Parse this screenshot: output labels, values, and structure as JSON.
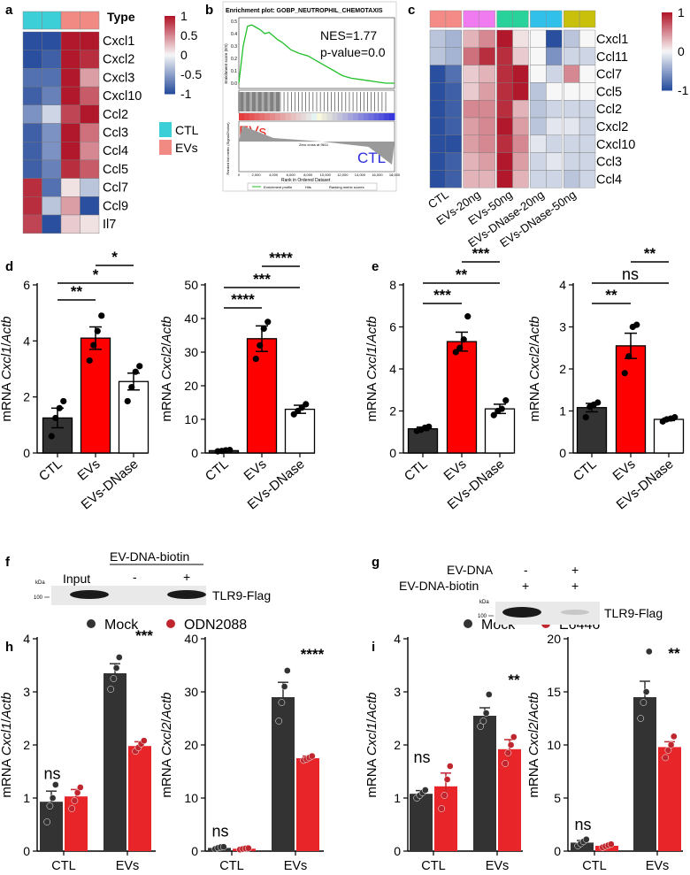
{
  "panels": {
    "a": {
      "label": "a"
    },
    "b": {
      "label": "b"
    },
    "c": {
      "label": "c"
    },
    "d": {
      "label": "d"
    },
    "e": {
      "label": "e"
    },
    "f": {
      "label": "f"
    },
    "g": {
      "label": "g"
    },
    "h": {
      "label": "h"
    },
    "i": {
      "label": "i"
    }
  },
  "colors": {
    "dark": "#333333",
    "red": "#ff0000",
    "dark_red": "#c0262d",
    "heat_high": "#b2182b",
    "heat_low": "#2a4f9e",
    "ctl_cyan": "#3ccfd8",
    "evs_salmon": "#f08a82"
  },
  "chart_data": [
    {
      "panel": "a",
      "type": "heatmap",
      "header": "Type",
      "columns": [
        "CTL",
        "CTL",
        "EVs",
        "EVs"
      ],
      "rows": [
        "Cxcl1",
        "Cxcl2",
        "Cxcl3",
        "Cxcl10",
        "Ccl2",
        "Ccl3",
        "Ccl4",
        "Ccl5",
        "Ccl7",
        "Ccl9",
        "Il7"
      ],
      "values": [
        [
          -1.0,
          -1.0,
          1.0,
          1.0
        ],
        [
          -1.0,
          -0.9,
          1.0,
          0.9
        ],
        [
          -0.8,
          -0.8,
          1.0,
          0.4
        ],
        [
          -0.9,
          -0.7,
          1.0,
          0.7
        ],
        [
          -0.6,
          -0.2,
          0.8,
          1.0
        ],
        [
          -0.9,
          -0.6,
          1.0,
          0.6
        ],
        [
          -0.9,
          -0.6,
          1.0,
          0.5
        ],
        [
          -0.9,
          -0.7,
          0.9,
          0.7
        ],
        [
          0.9,
          -0.8,
          0.1,
          -0.3
        ],
        [
          0.9,
          -0.3,
          0.4,
          -1.0
        ],
        [
          0.8,
          -1.0,
          0.2,
          0.1
        ]
      ],
      "colorbar_ticks": [
        "1",
        "0.5",
        "0",
        "-0.5",
        "-1"
      ],
      "legend": [
        "CTL",
        "EVs"
      ]
    },
    {
      "panel": "b",
      "type": "line",
      "title": "Enrichment plot: GOBP_NEUTROPHIL_CHEMOTAXIS",
      "ylabel_top": "Enrichment score (ES)",
      "ylabel_bottom": "Ranked list metric (Signal2Noise)",
      "xlabel": "Rank in Ordered Dataset",
      "y_ticks": [
        "0.5",
        "0.4",
        "0.3",
        "0.2",
        "0.1",
        "0.0"
      ],
      "x_ticks": [
        "0",
        "2,000",
        "4,000",
        "6,000",
        "8,000",
        "10,000",
        "12,000",
        "14,000",
        "16,000",
        "18,000"
      ],
      "nes": "NES=1.77",
      "pvalue": "p-value=0.0",
      "left_tag": "EVs",
      "right_tag": "CTL",
      "zero_cross": "Zero cross at 9611",
      "legend": [
        "Enrichment profile",
        "Hits",
        "Ranking metric scores"
      ],
      "x": [
        0,
        500,
        1000,
        1500,
        2000,
        2500,
        3000,
        3500,
        4000,
        4500,
        5000,
        5500,
        6000,
        7000,
        8000,
        9000,
        10000,
        11000,
        12000,
        13000,
        14000,
        15000,
        16000,
        17000,
        18000
      ],
      "y": [
        0.0,
        0.3,
        0.46,
        0.47,
        0.45,
        0.43,
        0.4,
        0.41,
        0.38,
        0.35,
        0.33,
        0.3,
        0.27,
        0.24,
        0.22,
        0.18,
        0.14,
        0.1,
        0.06,
        0.04,
        0.03,
        0.02,
        0.01,
        0.0,
        0.0
      ]
    },
    {
      "panel": "c",
      "type": "heatmap",
      "groups": [
        "CTL",
        "EVs-20ng",
        "EVs-50ng",
        "EVs-DNase-20ng",
        "EVs-DNase-50ng"
      ],
      "rows": [
        "Cxcl1",
        "Ccl11",
        "Ccl7",
        "Ccl5",
        "Ccl2",
        "Cxcl2",
        "Cxcl10",
        "Ccl3",
        "Ccl4"
      ],
      "values": [
        [
          -0.3,
          -0.4,
          0.3,
          0.5,
          1.0,
          0.1,
          0.0,
          -1.0,
          -0.3,
          0.0
        ],
        [
          -0.3,
          -0.4,
          0.6,
          0.9,
          0.9,
          0.2,
          0.0,
          -0.6,
          -0.2,
          -0.2
        ],
        [
          -1.0,
          -0.8,
          0.2,
          0.3,
          0.9,
          1.0,
          0.0,
          -0.2,
          0.5,
          0.0
        ],
        [
          -1.0,
          -0.9,
          0.2,
          0.4,
          0.9,
          1.0,
          -0.3,
          0.0,
          0.0,
          0.0
        ],
        [
          -1.0,
          -0.9,
          0.5,
          0.5,
          0.9,
          0.3,
          -0.3,
          -0.2,
          -0.2,
          -0.2
        ],
        [
          -1.0,
          -0.9,
          0.4,
          0.5,
          1.0,
          0.4,
          -0.3,
          -0.1,
          -0.1,
          -0.2
        ],
        [
          -1.0,
          -1.0,
          0.4,
          0.5,
          0.9,
          0.5,
          -0.1,
          -0.2,
          -0.2,
          -0.2
        ],
        [
          -1.0,
          -0.9,
          0.3,
          0.4,
          1.0,
          0.4,
          -0.2,
          -0.1,
          -0.2,
          -0.2
        ],
        [
          -1.0,
          -0.9,
          0.3,
          0.3,
          1.0,
          0.3,
          -0.2,
          -0.2,
          -0.3,
          -0.2
        ]
      ],
      "colorbar_ticks": [
        "1",
        "0",
        "-1"
      ]
    },
    {
      "panel": "d1",
      "type": "bar",
      "categories": [
        "CTL",
        "EVs",
        "EVs-DNase"
      ],
      "values": [
        1.25,
        4.1,
        2.55
      ],
      "errors": [
        0.35,
        0.4,
        0.3
      ],
      "points": [
        [
          0.6,
          1.25,
          1.6,
          1.85
        ],
        [
          3.3,
          3.85,
          4.35,
          4.9
        ],
        [
          1.85,
          2.35,
          2.9,
          3.1
        ]
      ],
      "ylabel": [
        "mRNA ",
        "Cxcl1",
        "/",
        "Actb"
      ],
      "ylim": [
        0,
        6
      ],
      "y_ticks": [
        0,
        2,
        4,
        6
      ],
      "sig": [
        {
          "from": 0,
          "to": 1,
          "text": "**"
        },
        {
          "from": 0,
          "to": 2,
          "text": "*"
        },
        {
          "from": 1,
          "to": 2,
          "text": "*"
        }
      ]
    },
    {
      "panel": "d2",
      "type": "bar",
      "categories": [
        "CTL",
        "EVs",
        "EVs-DNase"
      ],
      "values": [
        0.7,
        34,
        13
      ],
      "errors": [
        0.15,
        3.8,
        1.2
      ],
      "points": [
        [
          0.5,
          0.6,
          0.8,
          0.9
        ],
        [
          28,
          32,
          37,
          39
        ],
        [
          11.5,
          12.5,
          13.5,
          14.5
        ]
      ],
      "ylabel": [
        "mRNA ",
        "Cxcl2",
        "/",
        "Actb"
      ],
      "ylim": [
        0,
        50
      ],
      "y_ticks": [
        0,
        10,
        20,
        30,
        40,
        50
      ],
      "sig": [
        {
          "from": 0,
          "to": 1,
          "text": "****"
        },
        {
          "from": 0,
          "to": 2,
          "text": "***"
        },
        {
          "from": 1,
          "to": 2,
          "text": "****"
        }
      ]
    },
    {
      "panel": "e1",
      "type": "bar",
      "categories": [
        "CTL",
        "EVs",
        "EVs-DNase"
      ],
      "values": [
        1.15,
        5.3,
        2.1
      ],
      "errors": [
        0.08,
        0.45,
        0.22
      ],
      "points": [
        [
          1.05,
          1.1,
          1.2,
          1.25
        ],
        [
          4.8,
          5.0,
          5.4,
          6.5
        ],
        [
          1.8,
          2.0,
          2.1,
          2.5
        ]
      ],
      "ylabel": [
        "mRNA ",
        "Cxcl1",
        "/",
        "Actb"
      ],
      "ylim": [
        0,
        8
      ],
      "y_ticks": [
        0,
        2,
        4,
        6,
        8
      ],
      "sig": [
        {
          "from": 0,
          "to": 1,
          "text": "***"
        },
        {
          "from": 0,
          "to": 2,
          "text": "**"
        },
        {
          "from": 1,
          "to": 2,
          "text": "***"
        }
      ]
    },
    {
      "panel": "e2",
      "type": "bar",
      "categories": [
        "CTL",
        "EVs",
        "EVs-DNase"
      ],
      "values": [
        1.08,
        2.55,
        0.8
      ],
      "errors": [
        0.1,
        0.3,
        0.03
      ],
      "points": [
        [
          0.85,
          1.1,
          1.15,
          1.2
        ],
        [
          1.9,
          2.3,
          3.0,
          3.05
        ],
        [
          0.75,
          0.8,
          0.82,
          0.85
        ]
      ],
      "ylabel": [
        "mRNA ",
        "Cxcl2",
        "/",
        "Actb"
      ],
      "ylim": [
        0,
        4
      ],
      "y_ticks": [
        0,
        1,
        2,
        3,
        4
      ],
      "sig": [
        {
          "from": 0,
          "to": 1,
          "text": "**"
        },
        {
          "from": 0,
          "to": 2,
          "text": "ns"
        },
        {
          "from": 1,
          "to": 2,
          "text": "**"
        }
      ]
    },
    {
      "panel": "h1",
      "type": "bar",
      "categories": [
        "CTL",
        "EVs"
      ],
      "series": [
        {
          "name": "Mock",
          "values": [
            0.93,
            3.35
          ],
          "errors": [
            0.2,
            0.18
          ],
          "points": [
            [
              0.55,
              0.85,
              1.0,
              1.25
            ],
            [
              3.05,
              3.25,
              3.45,
              3.65
            ]
          ]
        },
        {
          "name": "ODN2088",
          "values": [
            1.03,
            1.98
          ],
          "errors": [
            0.13,
            0.08
          ],
          "points": [
            [
              0.8,
              0.95,
              1.1,
              1.2
            ],
            [
              1.88,
              1.95,
              2.02,
              2.08
            ]
          ]
        }
      ],
      "ylabel": [
        "mRNA ",
        "Cxcl1",
        "/",
        "Actb"
      ],
      "ylim": [
        0,
        4
      ],
      "y_ticks": [
        0,
        1,
        2,
        3,
        4
      ],
      "sig": [
        "ns",
        "***"
      ]
    },
    {
      "panel": "h2",
      "type": "bar",
      "categories": [
        "CTL",
        "EVs"
      ],
      "series": [
        {
          "name": "Mock",
          "values": [
            0.6,
            29
          ],
          "errors": [
            0.15,
            2.8
          ],
          "points": [
            [
              0.4,
              0.6,
              0.75,
              0.8
            ],
            [
              24.5,
              28,
              31,
              34
            ]
          ]
        },
        {
          "name": "ODN2088",
          "values": [
            0.45,
            17.5
          ],
          "errors": [
            0.1,
            0.4
          ],
          "points": [
            [
              0.3,
              0.4,
              0.5,
              0.55
            ],
            [
              17.1,
              17.3,
              17.6,
              17.9
            ]
          ]
        }
      ],
      "ylabel": [
        "mRNA ",
        "Cxcl2",
        "/",
        "Actb"
      ],
      "ylim": [
        0,
        40
      ],
      "y_ticks": [
        0,
        10,
        20,
        30,
        40
      ],
      "sig": [
        "ns",
        "****"
      ]
    },
    {
      "panel": "i1",
      "type": "bar",
      "categories": [
        "CTL",
        "EVs"
      ],
      "series": [
        {
          "name": "Mock",
          "values": [
            1.08,
            2.55
          ],
          "errors": [
            0.06,
            0.15
          ],
          "points": [
            [
              1.0,
              1.05,
              1.1,
              1.15
            ],
            [
              2.35,
              2.45,
              2.6,
              2.95
            ]
          ]
        },
        {
          "name": "E6446",
          "values": [
            1.22,
            1.92
          ],
          "errors": [
            0.25,
            0.18
          ],
          "points": [
            [
              0.8,
              1.05,
              1.35,
              1.6
            ],
            [
              1.65,
              1.85,
              2.0,
              2.15
            ]
          ]
        }
      ],
      "ylabel": [
        "mRNA ",
        "Cxcl1",
        "/",
        "Actb"
      ],
      "ylim": [
        0,
        4
      ],
      "y_ticks": [
        0,
        1,
        2,
        3,
        4
      ],
      "sig": [
        "ns",
        "**"
      ]
    },
    {
      "panel": "i2",
      "type": "bar",
      "categories": [
        "CTL",
        "EVs"
      ],
      "series": [
        {
          "name": "Mock",
          "values": [
            0.8,
            14.5
          ],
          "errors": [
            0.2,
            1.5
          ],
          "points": [
            [
              0.5,
              0.7,
              0.9,
              1.1
            ],
            [
              12.5,
              14,
              15,
              18.8
            ]
          ]
        },
        {
          "name": "E6446",
          "values": [
            0.5,
            9.8
          ],
          "errors": [
            0.1,
            0.5
          ],
          "points": [
            [
              0.35,
              0.45,
              0.55,
              0.65
            ],
            [
              8.8,
              9.5,
              10,
              10.8
            ]
          ]
        }
      ],
      "ylabel": [
        "mRNA ",
        "Cxcl2",
        "/",
        "Actb"
      ],
      "ylim": [
        0,
        20
      ],
      "y_ticks": [
        0,
        5,
        10,
        15,
        20
      ],
      "sig": [
        "ns",
        "**"
      ]
    }
  ],
  "blot_f": {
    "header": "EV-DNA-biotin",
    "input": "Input",
    "minus": "-",
    "plus": "+",
    "kda": "kDa",
    "marker": "100",
    "band": "TLR9-Flag"
  },
  "blot_g": {
    "row1": "EV-DNA",
    "row2": "EV-DNA-biotin",
    "r1": [
      "-",
      "+"
    ],
    "r2": [
      "+",
      "+"
    ],
    "kda": "kDa",
    "marker": "100",
    "band": "TLR9-Flag"
  }
}
